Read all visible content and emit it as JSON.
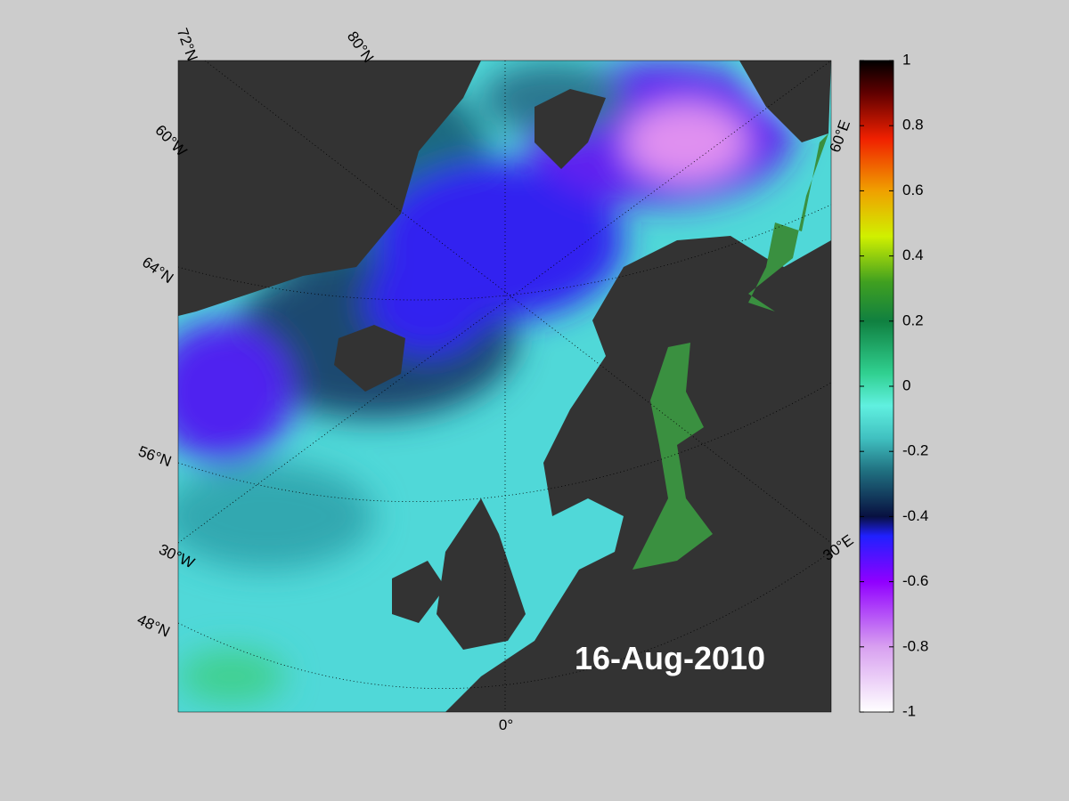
{
  "map": {
    "labels": [
      "72°N",
      "80°N",
      "60°W",
      "64°N",
      "56°N",
      "30°W",
      "48°N",
      "0°",
      "60°E",
      "30°E"
    ],
    "date": "16-Aug-2010"
  },
  "colorbar": {
    "lim": [
      -1,
      1
    ],
    "ticks": [
      1,
      0.8,
      0.6,
      0.4,
      0.2,
      0,
      -0.2,
      -0.4,
      -0.6,
      -0.8,
      -1
    ]
  }
}
